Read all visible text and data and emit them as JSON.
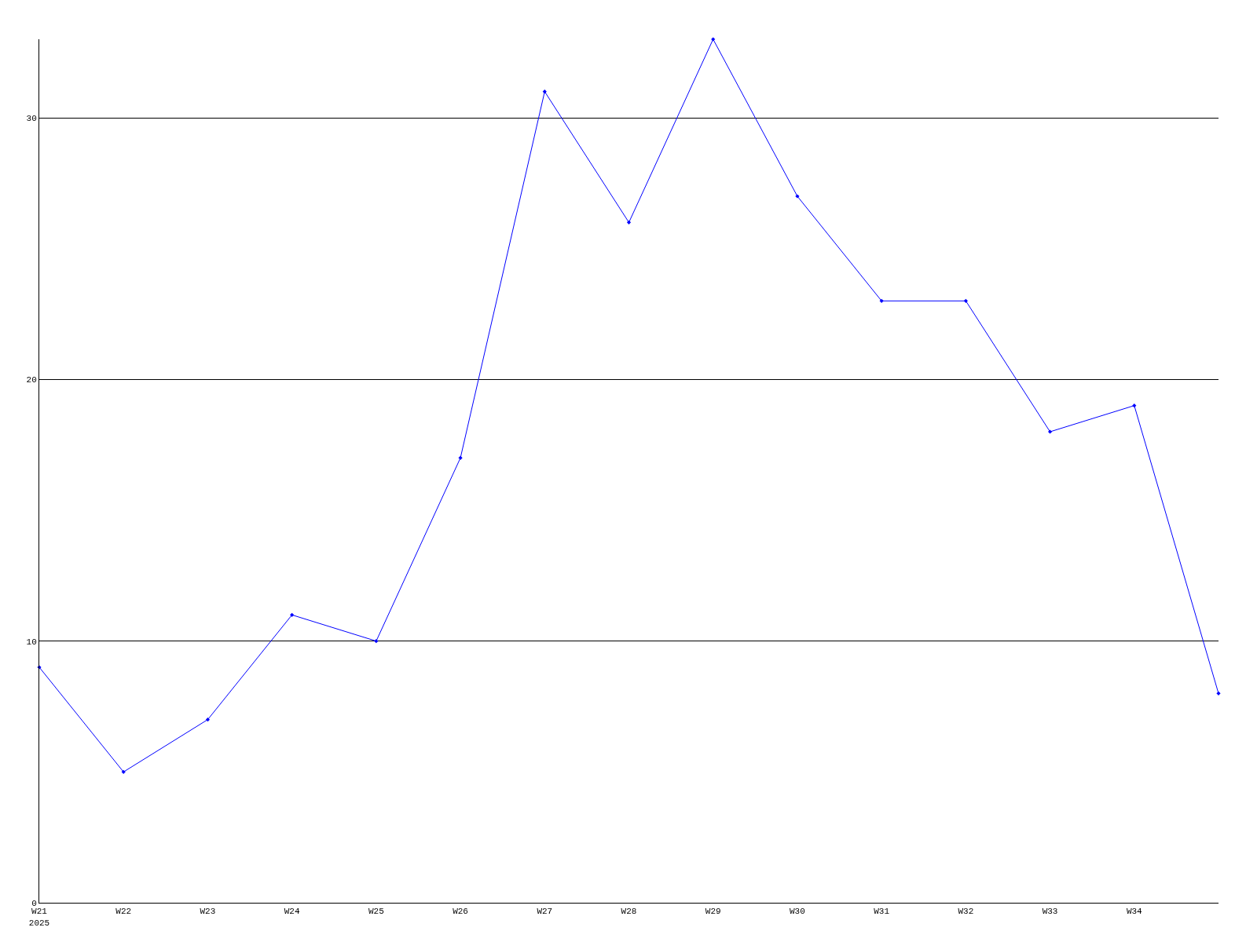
{
  "chart_data": {
    "type": "line",
    "categories": [
      "W21\n2025",
      "W22",
      "W23",
      "W24",
      "W25",
      "W26",
      "W27",
      "W28",
      "W29",
      "W30",
      "W31",
      "W32",
      "W33",
      "W34",
      null
    ],
    "series": [
      {
        "color": "#0000ff",
        "values": [
          9,
          5,
          7,
          11,
          10,
          17,
          31,
          26,
          33,
          27,
          23,
          23,
          18,
          19,
          8
        ]
      }
    ],
    "ylim": [
      0,
      33
    ],
    "yticks": [
      0,
      10,
      20,
      30
    ],
    "grid": "y",
    "legend": false,
    "marker": "diamond",
    "line_style": "solid"
  }
}
